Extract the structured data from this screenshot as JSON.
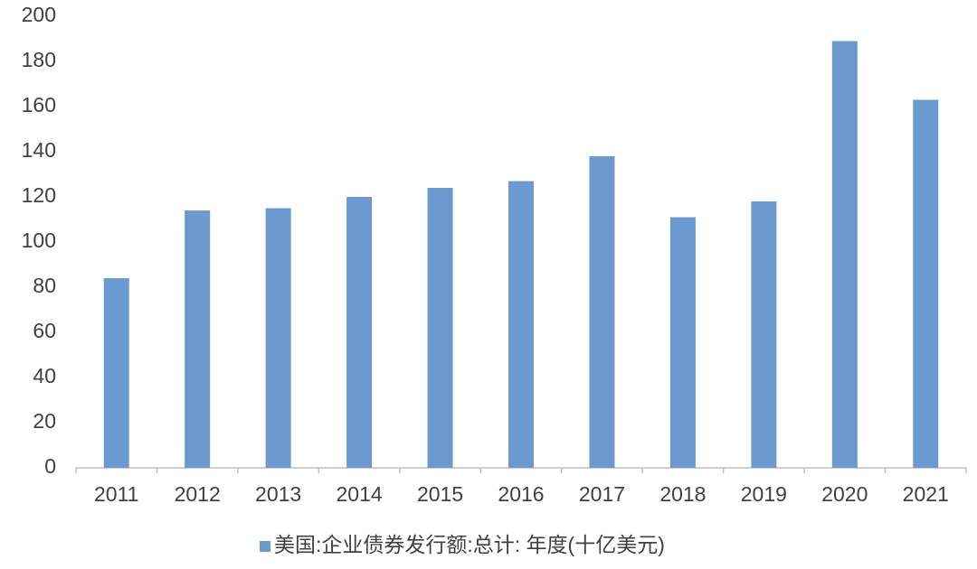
{
  "chart_data": {
    "type": "bar",
    "categories": [
      "2011",
      "2012",
      "2013",
      "2014",
      "2015",
      "2016",
      "2017",
      "2018",
      "2019",
      "2020",
      "2021"
    ],
    "series": [
      {
        "name": "美国:企业债券发行额:总计: 年度(十亿美元)",
        "color": "#6a9ad0",
        "values": [
          84,
          114,
          115,
          120,
          124,
          127,
          138,
          111,
          118,
          189,
          163
        ]
      }
    ],
    "ylim": [
      0,
      200
    ],
    "yticks": [
      0,
      20,
      40,
      60,
      80,
      100,
      120,
      140,
      160,
      180,
      200
    ],
    "grid": false,
    "legend": "bottom"
  }
}
